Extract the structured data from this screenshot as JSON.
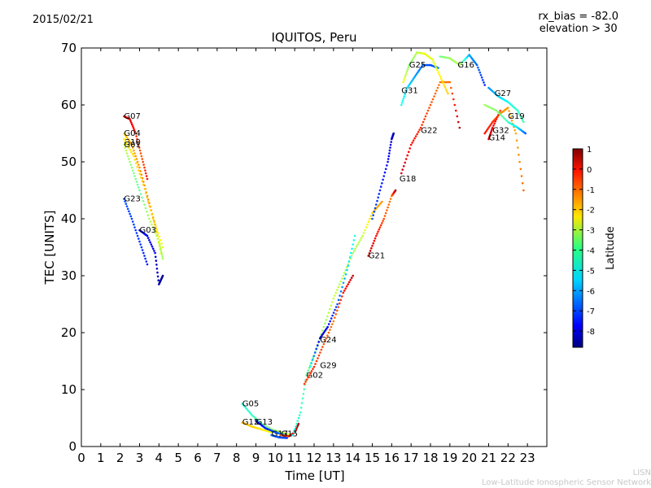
{
  "header": {
    "date": "2015/02/21",
    "bias_line1": "rx_bias = -82.0",
    "bias_line2": "elevation > 30"
  },
  "footer": {
    "line1": "LISN",
    "line2": "Low-Latitude Ionospheric Sensor Network"
  },
  "chart_data": {
    "type": "scatter",
    "title": "IQUITOS, Peru",
    "xlabel": "Time [UT]",
    "ylabel": "TEC [UNITS]",
    "xlim": [
      0,
      24
    ],
    "ylim": [
      0,
      70
    ],
    "xticks": [
      0,
      1,
      2,
      3,
      4,
      5,
      6,
      7,
      8,
      9,
      10,
      11,
      12,
      13,
      14,
      15,
      16,
      17,
      18,
      19,
      20,
      21,
      22,
      23
    ],
    "yticks": [
      0,
      10,
      20,
      30,
      40,
      50,
      60,
      70
    ],
    "grid": false,
    "colorbar": {
      "label": "Latitude",
      "min": -8.8,
      "max": 1.0,
      "ticks": [
        1,
        0,
        -1,
        -2,
        -3,
        -4,
        -5,
        -6,
        -7,
        -8
      ],
      "colormap": "jet"
    },
    "series": [
      {
        "name": "G07",
        "label_at": [
          2.2,
          58
        ],
        "points": [
          [
            2.2,
            58,
            -0.1
          ],
          [
            2.5,
            57.5,
            0.1
          ],
          [
            2.8,
            55,
            -0.5
          ],
          [
            3.1,
            51,
            -1.1
          ],
          [
            3.4,
            47,
            -0.3
          ]
        ]
      },
      {
        "name": "G04",
        "label_at": [
          2.2,
          55
        ],
        "points": [
          [
            2.2,
            55,
            -2.2
          ],
          [
            2.6,
            53,
            -1.8
          ],
          [
            3.0,
            49,
            -1.6
          ],
          [
            3.4,
            44,
            -1.5
          ],
          [
            3.8,
            39,
            -1.9
          ],
          [
            4.1,
            34,
            -2.6
          ]
        ]
      },
      {
        "name": "G10",
        "label_at": [
          2.2,
          53.4
        ],
        "points": [
          [
            2.2,
            53,
            -3.2
          ],
          [
            2.6,
            49,
            -3.8
          ],
          [
            3.0,
            45,
            -4.2
          ],
          [
            3.5,
            40,
            -3.5
          ],
          [
            4.0,
            36,
            -3.3
          ],
          [
            4.2,
            33,
            -3.6
          ]
        ]
      },
      {
        "name": "G01",
        "label_at": [
          2.2,
          53.0
        ],
        "points": [
          [
            2.2,
            54,
            -2.6
          ],
          [
            2.7,
            51,
            -2.4
          ],
          [
            3.2,
            46,
            -2.2
          ],
          [
            3.7,
            40,
            -2.3
          ],
          [
            4.2,
            35,
            -2.8
          ]
        ]
      },
      {
        "name": "G23",
        "label_at": [
          2.2,
          43.5
        ],
        "points": [
          [
            2.2,
            43.5,
            -6.8
          ],
          [
            2.6,
            40,
            -7.0
          ],
          [
            3.0,
            36,
            -7.1
          ],
          [
            3.4,
            32,
            -7.3
          ]
        ]
      },
      {
        "name": "G03",
        "label_at": [
          3.0,
          38
        ],
        "points": [
          [
            3.0,
            38,
            -7.6
          ],
          [
            3.4,
            37,
            -7.7
          ],
          [
            3.8,
            34,
            -7.8
          ],
          [
            4.0,
            28.5,
            -8.4
          ],
          [
            4.2,
            30,
            -8.6
          ]
        ]
      },
      {
        "name": "G05",
        "label_at": [
          8.3,
          7.5
        ],
        "points": [
          [
            8.3,
            7.5,
            -4.8
          ],
          [
            8.8,
            5.5,
            -4.6
          ],
          [
            9.3,
            4,
            -4.2
          ],
          [
            9.8,
            3,
            -3.8
          ],
          [
            10.3,
            2.5,
            -3.5
          ],
          [
            10.8,
            2,
            -3.0
          ]
        ]
      },
      {
        "name": "G12",
        "label_at": [
          8.3,
          4.3
        ],
        "points": [
          [
            8.3,
            4.2,
            -2.0
          ],
          [
            8.8,
            3.5,
            -2.2
          ],
          [
            9.3,
            3,
            -2.5
          ],
          [
            9.8,
            2.5,
            -2.7
          ]
        ]
      },
      {
        "name": "G13",
        "label_at": [
          9.0,
          4.3
        ],
        "points": [
          [
            9.0,
            4.5,
            -7.9
          ],
          [
            9.5,
            3.2,
            -7.3
          ],
          [
            10.0,
            2.5,
            -6.8
          ],
          [
            10.5,
            2,
            -6.2
          ]
        ]
      },
      {
        "name": "G17",
        "label_at": [
          9.8,
          2.2
        ],
        "points": [
          [
            9.8,
            2.0,
            -6.5
          ],
          [
            10.2,
            1.6,
            -6.8
          ],
          [
            10.6,
            1.5,
            -7.0
          ]
        ]
      },
      {
        "name": "G15",
        "label_at": [
          10.3,
          2.2
        ],
        "points": [
          [
            10.3,
            2.0,
            -1.0
          ],
          [
            10.7,
            1.8,
            -0.5
          ],
          [
            11.0,
            2.5,
            0.2
          ],
          [
            11.2,
            4,
            0.5
          ]
        ]
      },
      {
        "name": "G02",
        "label_at": [
          11.6,
          12.5
        ],
        "points": [
          [
            10.9,
            2,
            -5.0
          ],
          [
            11.3,
            6,
            -4.6
          ],
          [
            11.6,
            12.5,
            -4.2
          ],
          [
            12.0,
            16,
            -4.0
          ],
          [
            12.5,
            21,
            -3.6
          ],
          [
            13.0,
            26,
            -3.2
          ],
          [
            13.5,
            30,
            -3.4
          ],
          [
            14.0,
            34,
            -3.6
          ],
          [
            14.5,
            37,
            -3.2
          ],
          [
            15.0,
            41,
            -2.2
          ],
          [
            15.5,
            43,
            -1.6
          ]
        ]
      },
      {
        "name": "G29",
        "label_at": [
          12.3,
          14.2
        ],
        "points": [
          [
            11.5,
            11,
            -0.8
          ],
          [
            12.0,
            14,
            -0.6
          ],
          [
            12.5,
            18,
            -1.0
          ],
          [
            13.0,
            22,
            -1.4
          ],
          [
            13.5,
            27,
            -0.4
          ],
          [
            14.0,
            30,
            0.3
          ]
        ]
      },
      {
        "name": "G24",
        "label_at": [
          12.3,
          18.7
        ],
        "points": [
          [
            11.8,
            14,
            -5.0
          ],
          [
            12.3,
            19,
            -8.3
          ],
          [
            12.7,
            21,
            -7.6
          ],
          [
            13.2,
            25,
            -6.8
          ],
          [
            13.7,
            31,
            -5.5
          ],
          [
            14.1,
            37,
            -4.8
          ]
        ]
      },
      {
        "name": "G21",
        "label_at": [
          14.8,
          33.5
        ],
        "points": [
          [
            14.8,
            33.5,
            0.4
          ],
          [
            15.2,
            37,
            -0.3
          ],
          [
            15.6,
            40,
            -1.0
          ],
          [
            16.0,
            44,
            -1.4
          ],
          [
            16.2,
            45,
            0.5
          ]
        ]
      },
      {
        "name": "G18",
        "label_at": [
          16.4,
          47
        ],
        "points": [
          [
            15.0,
            40,
            -6.8
          ],
          [
            15.4,
            45,
            -7.2
          ],
          [
            15.8,
            50,
            -7.5
          ],
          [
            16.0,
            54,
            -8.0
          ],
          [
            16.1,
            55,
            -8.3
          ]
        ]
      },
      {
        "name": "G22",
        "label_at": [
          17.5,
          55.5
        ],
        "points": [
          [
            16.5,
            48,
            0.2
          ],
          [
            17.0,
            53,
            -0.3
          ],
          [
            17.5,
            56,
            -0.6
          ],
          [
            18.0,
            60,
            -1.0
          ],
          [
            18.5,
            64,
            -1.4
          ],
          [
            19.0,
            64,
            -1.3
          ],
          [
            19.5,
            56,
            0.5
          ]
        ]
      },
      {
        "name": "G31",
        "label_at": [
          16.5,
          62.5
        ],
        "points": [
          [
            16.5,
            60,
            -4.8
          ],
          [
            16.8,
            63,
            -5.4
          ],
          [
            17.2,
            65,
            -6.0
          ],
          [
            17.6,
            67,
            -6.6
          ],
          [
            18.0,
            67,
            -6.9
          ],
          [
            18.4,
            66.5,
            -6.3
          ]
        ]
      },
      {
        "name": "G25",
        "label_at": [
          16.9,
          67
        ],
        "points": [
          [
            16.6,
            64,
            -2.8
          ],
          [
            16.9,
            67,
            -3.8
          ],
          [
            17.3,
            69.2,
            -3.4
          ],
          [
            17.7,
            69,
            -2.8
          ],
          [
            18.1,
            68,
            -3.0
          ],
          [
            18.5,
            65,
            -2.6
          ],
          [
            18.9,
            62,
            -2.2
          ]
        ]
      },
      {
        "name": "G16",
        "label_at": [
          19.4,
          67
        ],
        "points": [
          [
            18.5,
            68.5,
            -4.0
          ],
          [
            19.0,
            68.2,
            -3.6
          ],
          [
            19.5,
            67,
            -3.4
          ],
          [
            20.0,
            68.8,
            -6.0
          ],
          [
            20.4,
            67,
            -6.6
          ],
          [
            20.8,
            63.5,
            -7.2
          ]
        ]
      },
      {
        "name": "G27",
        "label_at": [
          21.3,
          62
        ],
        "points": [
          [
            21.0,
            63,
            -6.2
          ],
          [
            21.5,
            61.5,
            -5.6
          ],
          [
            22.0,
            60.5,
            -5.0
          ],
          [
            22.5,
            59,
            -4.6
          ],
          [
            22.8,
            57,
            -4.4
          ]
        ]
      },
      {
        "name": "G32",
        "label_at": [
          21.2,
          55.5
        ],
        "points": [
          [
            20.8,
            55,
            -0.4
          ],
          [
            21.2,
            57,
            -0.6
          ],
          [
            21.6,
            58.5,
            -1.6
          ],
          [
            22.0,
            59.5,
            -1.7
          ],
          [
            22.4,
            55,
            -1.8
          ],
          [
            22.8,
            45,
            -1.2
          ]
        ]
      },
      {
        "name": "G14",
        "label_at": [
          21.0,
          54.2
        ],
        "points": [
          [
            21.0,
            54,
            0.3
          ],
          [
            21.2,
            56,
            0.1
          ],
          [
            21.6,
            59,
            -0.8
          ]
        ]
      },
      {
        "name": "G19",
        "label_at": [
          22.0,
          58
        ],
        "points": [
          [
            20.8,
            60,
            -3.6
          ],
          [
            21.4,
            59,
            -3.8
          ],
          [
            22.0,
            57,
            -4.6
          ],
          [
            22.5,
            56,
            -5.4
          ],
          [
            22.9,
            55,
            -6.6
          ]
        ]
      }
    ]
  }
}
